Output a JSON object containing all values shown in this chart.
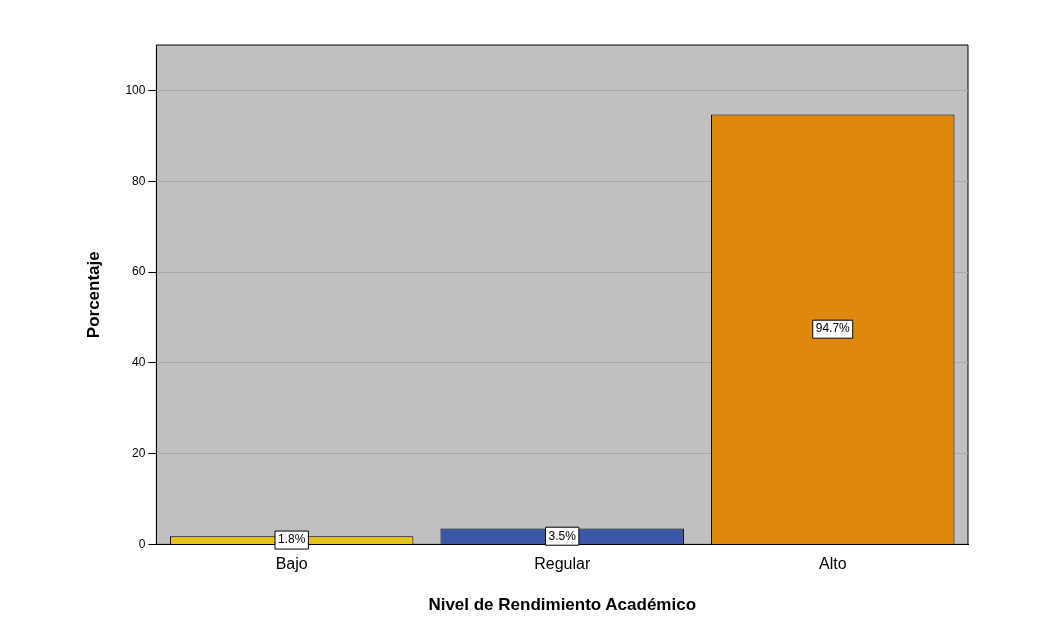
{
  "chart_data": {
    "type": "bar",
    "xlabel": "Nivel de Rendimiento Académico",
    "ylabel": "Porcentaje",
    "categories": [
      "Bajo",
      "Regular",
      "Alto"
    ],
    "values": [
      1.8,
      3.5,
      94.7
    ],
    "colors": [
      "#e6c21a",
      "#3a56a6",
      "#e0880e"
    ],
    "value_labels": [
      "1.8%",
      "3.5%",
      "94.7%"
    ],
    "ylim": [
      0,
      110
    ],
    "yticks": [
      0,
      20,
      40,
      60,
      80,
      100
    ],
    "grid": "y",
    "legend": false
  }
}
